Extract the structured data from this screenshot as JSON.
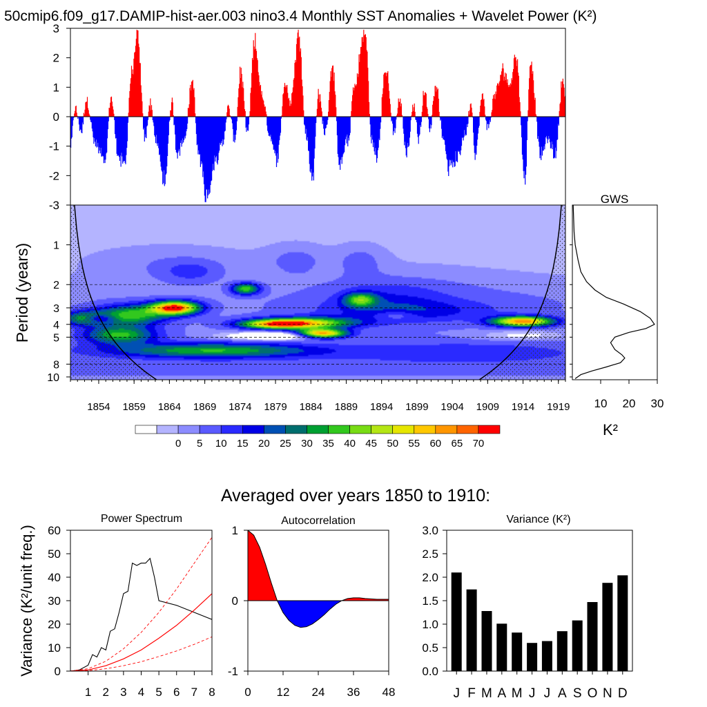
{
  "figure": {
    "title": "50cmip6.f09_g17.DAMIP-hist-aer.003 nino3.4 Monthly SST Anomalies + Wavelet Power (K²)",
    "sub_title": "Averaged over years 1850 to 1910:"
  },
  "chart_data": [
    {
      "id": "anomaly",
      "type": "area",
      "x_start_year": 1850,
      "x_end_year": 1920,
      "ylim": [
        -3,
        3
      ],
      "yticks": [
        "3",
        "2",
        "1",
        "0",
        "-1",
        "-2",
        "-3"
      ],
      "colors": {
        "positive": "#ff0000",
        "negative": "#0000ff"
      },
      "events": [
        [
          1850.0,
          -1.0
        ],
        [
          1850.6,
          0.3
        ],
        [
          1851.5,
          -0.5
        ],
        [
          1852.2,
          0.6
        ],
        [
          1853.5,
          -1.0
        ],
        [
          1854.8,
          -1.7
        ],
        [
          1855.7,
          0.7
        ],
        [
          1856.7,
          -1.4
        ],
        [
          1857.6,
          -1.8
        ],
        [
          1858.6,
          1.5
        ],
        [
          1859.4,
          2.9
        ],
        [
          1860.5,
          -0.8
        ],
        [
          1861.2,
          0.5
        ],
        [
          1862.2,
          -1.0
        ],
        [
          1863.2,
          -2.35
        ],
        [
          1864.3,
          0.5
        ],
        [
          1865.0,
          -1.3
        ],
        [
          1866.0,
          -0.9
        ],
        [
          1867.2,
          1.3
        ],
        [
          1868.0,
          -1.2
        ],
        [
          1869.2,
          -2.8
        ],
        [
          1870.5,
          -1.5
        ],
        [
          1871.3,
          -1.1
        ],
        [
          1872.3,
          0.3
        ],
        [
          1873.2,
          -0.8
        ],
        [
          1874.0,
          1.6
        ],
        [
          1875.0,
          -0.5
        ],
        [
          1876.0,
          2.6
        ],
        [
          1877.1,
          0.7
        ],
        [
          1878.1,
          -0.6
        ],
        [
          1879.2,
          -1.5
        ],
        [
          1880.3,
          1.2
        ],
        [
          1881.0,
          0.5
        ],
        [
          1882.3,
          3.0
        ],
        [
          1883.2,
          -0.6
        ],
        [
          1884.2,
          -2.2
        ],
        [
          1885.0,
          0.8
        ],
        [
          1886.0,
          -0.6
        ],
        [
          1887.0,
          1.9
        ],
        [
          1888.0,
          -1.6
        ],
        [
          1889.3,
          -0.8
        ],
        [
          1890.0,
          1.0
        ],
        [
          1891.6,
          3.0
        ],
        [
          1892.6,
          -0.9
        ],
        [
          1893.3,
          -1.5
        ],
        [
          1894.5,
          1.7
        ],
        [
          1895.7,
          -0.5
        ],
        [
          1896.5,
          0.6
        ],
        [
          1897.5,
          -1.3
        ],
        [
          1898.5,
          0.4
        ],
        [
          1899.2,
          -0.8
        ],
        [
          1900.0,
          0.9
        ],
        [
          1900.8,
          -0.4
        ],
        [
          1901.6,
          1.2
        ],
        [
          1902.7,
          -0.8
        ],
        [
          1903.4,
          -1.8
        ],
        [
          1904.6,
          -1.5
        ],
        [
          1905.8,
          -0.6
        ],
        [
          1906.6,
          0.5
        ],
        [
          1907.2,
          -1.3
        ],
        [
          1908.2,
          0.7
        ],
        [
          1909.0,
          -0.4
        ],
        [
          1910.0,
          0.8
        ],
        [
          1911.2,
          1.7
        ],
        [
          1912.0,
          1.1
        ],
        [
          1913.0,
          2.2
        ],
        [
          1914.2,
          -2.3
        ],
        [
          1915.0,
          1.9
        ],
        [
          1916.5,
          -1.4
        ],
        [
          1917.3,
          -0.8
        ],
        [
          1918.5,
          -1.3
        ],
        [
          1919.6,
          1.4
        ],
        [
          1920.0,
          0.5
        ]
      ]
    },
    {
      "id": "wavelet",
      "type": "heatmap",
      "x_ticks": [
        "1854",
        "1859",
        "1864",
        "1869",
        "1874",
        "1879",
        "1884",
        "1889",
        "1894",
        "1899",
        "1904",
        "1909",
        "1914",
        "1919"
      ],
      "x_tick_years": [
        1854,
        1859,
        1864,
        1869,
        1874,
        1879,
        1884,
        1889,
        1894,
        1899,
        1904,
        1909,
        1914,
        1919
      ],
      "ylabel": "Period (years)",
      "y_ticks": [
        "1",
        "2",
        "3",
        "4",
        "5",
        "8",
        "10"
      ],
      "y_tick_values": [
        1,
        2,
        3,
        4,
        5,
        8,
        10
      ],
      "ylim": [
        0.5,
        10.5
      ],
      "reference_periods": [
        2,
        3,
        4,
        5,
        8
      ],
      "blobs": [
        {
          "x": 1864.8,
          "p": 3.0,
          "sx": 2.4,
          "sy": 0.12,
          "a": 66
        },
        {
          "x": 1858.5,
          "p": 3.4,
          "sx": 3.5,
          "sy": 0.18,
          "a": 35
        },
        {
          "x": 1874.8,
          "p": 2.15,
          "sx": 1.4,
          "sy": 0.1,
          "a": 36
        },
        {
          "x": 1883.0,
          "p": 3.9,
          "sx": 5.0,
          "sy": 0.1,
          "a": 44
        },
        {
          "x": 1885.5,
          "p": 4.7,
          "sx": 2.5,
          "sy": 0.08,
          "a": 62
        },
        {
          "x": 1879.0,
          "p": 4.0,
          "sx": 3.5,
          "sy": 0.08,
          "a": 40
        },
        {
          "x": 1891.0,
          "p": 2.6,
          "sx": 1.6,
          "sy": 0.12,
          "a": 31
        },
        {
          "x": 1914.0,
          "p": 3.8,
          "sx": 3.0,
          "sy": 0.09,
          "a": 60
        },
        {
          "x": 1870.0,
          "p": 6.3,
          "sx": 10.0,
          "sy": 0.13,
          "a": 30
        },
        {
          "x": 1857.0,
          "p": 4.8,
          "sx": 3.5,
          "sy": 0.16,
          "a": 32
        },
        {
          "x": 1852.0,
          "p": 3.6,
          "sx": 2.2,
          "sy": 0.12,
          "a": 30
        },
        {
          "x": 1898.0,
          "p": 3.2,
          "sx": 9.0,
          "sy": 0.2,
          "a": 12
        },
        {
          "x": 1905.0,
          "p": 6.5,
          "sx": 12.0,
          "sy": 0.18,
          "a": 9
        },
        {
          "x": 1895.0,
          "p": 2.5,
          "sx": 6.0,
          "sy": 0.35,
          "a": 8
        },
        {
          "x": 1864.0,
          "p": 1.4,
          "sx": 9.0,
          "sy": 0.35,
          "a": 7
        },
        {
          "x": 1882.0,
          "p": 1.3,
          "sx": 3.0,
          "sy": 0.3,
          "a": 8
        },
        {
          "x": 1891.0,
          "p": 1.3,
          "sx": 2.5,
          "sy": 0.3,
          "a": 8
        },
        {
          "x": 1867.0,
          "p": 1.6,
          "sx": 3.0,
          "sy": 0.2,
          "a": 9
        },
        {
          "x": 1900.0,
          "p": 2.0,
          "sx": 15.0,
          "sy": 0.5,
          "a": 4
        }
      ],
      "holes": [
        {
          "x": 1879.0,
          "p": 4.9,
          "sx": 4.8,
          "sy": 0.07,
          "a": 28
        },
        {
          "x": 1854.0,
          "p": 3.6,
          "sx": 1.5,
          "sy": 0.07,
          "a": 22
        },
        {
          "x": 1914.0,
          "p": 4.85,
          "sx": 4.0,
          "sy": 0.08,
          "a": 12
        },
        {
          "x": 1896.0,
          "p": 3.4,
          "sx": 2.0,
          "sy": 0.08,
          "a": 10
        }
      ]
    },
    {
      "id": "colorbar",
      "type": "legend",
      "labels": [
        "0",
        "5",
        "10",
        "15",
        "20",
        "25",
        "30",
        "35",
        "40",
        "45",
        "50",
        "55",
        "60",
        "65",
        "70"
      ],
      "levels": [
        0,
        5,
        10,
        15,
        20,
        25,
        30,
        35,
        40,
        45,
        50,
        55,
        60,
        65,
        70
      ],
      "colors": [
        "#ffffff",
        "#b4b4ff",
        "#8c8cff",
        "#5a5aff",
        "#2a2aff",
        "#0000e6",
        "#0050b4",
        "#006e6e",
        "#00a032",
        "#32c81e",
        "#78dc14",
        "#b4e614",
        "#e6e600",
        "#ffc800",
        "#ff9600",
        "#ff6400",
        "#ff0000"
      ]
    },
    {
      "id": "gws",
      "type": "line",
      "title": "GWS",
      "xlabel": "K²",
      "xticks": [
        "10",
        "20",
        "30"
      ],
      "xlim": [
        0,
        30
      ],
      "points": [
        [
          0.3,
          0.5
        ],
        [
          0.6,
          0.8
        ],
        [
          1.0,
          1.0
        ],
        [
          2.0,
          1.3
        ],
        [
          3.0,
          1.6
        ],
        [
          5.0,
          1.9
        ],
        [
          8.0,
          2.2
        ],
        [
          12.0,
          2.5
        ],
        [
          18.0,
          2.8
        ],
        [
          24.0,
          3.2
        ],
        [
          27.5,
          3.6
        ],
        [
          29.0,
          4.0
        ],
        [
          26.0,
          4.3
        ],
        [
          20.0,
          4.6
        ],
        [
          15.0,
          5.0
        ],
        [
          13.5,
          5.5
        ],
        [
          15.0,
          6.2
        ],
        [
          17.5,
          6.8
        ],
        [
          18.5,
          7.2
        ],
        [
          17.0,
          7.8
        ],
        [
          12.0,
          8.4
        ],
        [
          7.0,
          9.0
        ],
        [
          3.0,
          9.6
        ],
        [
          1.0,
          10.3
        ]
      ]
    },
    {
      "id": "power",
      "type": "line",
      "title": "Power Spectrum",
      "ylabel": "Variance (K²/unit freq.)",
      "xticks": [
        "1",
        "2",
        "3",
        "4",
        "5",
        "6",
        "7",
        "8"
      ],
      "yticks": [
        "0",
        "10",
        "20",
        "30",
        "40",
        "50",
        "60"
      ],
      "xlim": [
        0,
        8
      ],
      "ylim": [
        0,
        60
      ],
      "series": [
        {
          "values": [
            [
              0,
              0
            ],
            [
              0.5,
              0.5
            ],
            [
              1.0,
              2.5
            ],
            [
              1.25,
              7
            ],
            [
              1.5,
              6
            ],
            [
              1.75,
              10
            ],
            [
              2.0,
              9
            ],
            [
              2.25,
              17
            ],
            [
              2.5,
              18
            ],
            [
              2.75,
              25
            ],
            [
              3.0,
              33
            ],
            [
              3.25,
              34
            ],
            [
              3.5,
              46
            ],
            [
              3.75,
              45
            ],
            [
              4.0,
              46
            ],
            [
              4.25,
              46
            ],
            [
              4.5,
              48
            ],
            [
              4.75,
              40
            ],
            [
              5.0,
              30
            ],
            [
              6.0,
              28
            ],
            [
              7.0,
              25
            ],
            [
              8.0,
              22
            ]
          ]
        },
        {
          "values": [
            [
              0,
              0
            ],
            [
              1,
              0.5
            ],
            [
              2,
              2.3
            ],
            [
              3,
              5.2
            ],
            [
              4,
              9
            ],
            [
              5,
              14
            ],
            [
              6,
              19.5
            ],
            [
              7,
              26
            ],
            [
              8,
              33
            ]
          ]
        },
        {
          "values": [
            [
              0,
              0
            ],
            [
              1,
              1
            ],
            [
              2,
              4.2
            ],
            [
              3,
              9.5
            ],
            [
              4,
              16.5
            ],
            [
              5,
              25
            ],
            [
              6,
              35
            ],
            [
              7,
              46
            ],
            [
              8,
              57
            ]
          ]
        },
        {
          "values": [
            [
              0,
              0
            ],
            [
              1,
              0.2
            ],
            [
              2,
              1
            ],
            [
              3,
              2.3
            ],
            [
              4,
              4
            ],
            [
              5,
              6.2
            ],
            [
              6,
              8.6
            ],
            [
              7,
              11.4
            ],
            [
              8,
              14.6
            ]
          ]
        }
      ]
    },
    {
      "id": "autocorr",
      "type": "area",
      "title": "Autocorrelation",
      "xticks": [
        "0",
        "12",
        "24",
        "36",
        "48"
      ],
      "yticks": [
        "1",
        "0",
        "-1"
      ],
      "xlim": [
        0,
        48
      ],
      "ylim": [
        -1,
        1
      ],
      "colors": {
        "positive": "#ff0000",
        "negative": "#0000ff"
      },
      "values": [
        [
          0,
          1.0
        ],
        [
          2,
          0.93
        ],
        [
          4,
          0.76
        ],
        [
          6,
          0.52
        ],
        [
          8,
          0.25
        ],
        [
          10,
          0.0
        ],
        [
          12,
          -0.17
        ],
        [
          14,
          -0.28
        ],
        [
          16,
          -0.35
        ],
        [
          18,
          -0.38
        ],
        [
          20,
          -0.37
        ],
        [
          22,
          -0.33
        ],
        [
          24,
          -0.27
        ],
        [
          26,
          -0.2
        ],
        [
          28,
          -0.12
        ],
        [
          30,
          -0.05
        ],
        [
          32,
          0.0
        ],
        [
          34,
          0.03
        ],
        [
          36,
          0.04
        ],
        [
          38,
          0.04
        ],
        [
          40,
          0.03
        ],
        [
          44,
          0.02
        ],
        [
          48,
          0.02
        ]
      ]
    },
    {
      "id": "variance",
      "type": "bar",
      "title": "Variance (K²)",
      "categories": [
        "J",
        "F",
        "M",
        "A",
        "M",
        "J",
        "J",
        "A",
        "S",
        "O",
        "N",
        "D"
      ],
      "values": [
        2.1,
        1.74,
        1.28,
        1.01,
        0.82,
        0.6,
        0.64,
        0.85,
        1.08,
        1.47,
        1.88,
        2.04
      ],
      "yticks": [
        "0.0",
        "0.5",
        "1.0",
        "1.5",
        "2.0",
        "2.5",
        "3.0"
      ],
      "ylim": [
        0,
        3
      ]
    }
  ]
}
